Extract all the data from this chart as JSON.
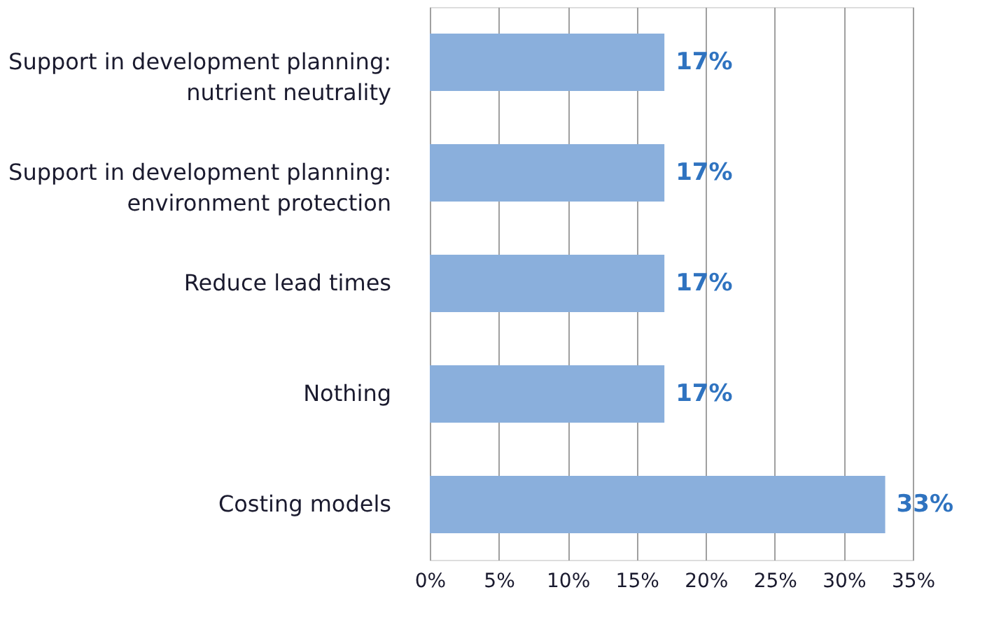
{
  "chart_data": {
    "type": "bar",
    "orientation": "horizontal",
    "categories": [
      "Support in development planning:\nnutrient neutrality",
      "Support in development planning:\nenvironment protection",
      "Reduce lead times",
      "Nothing",
      "Costing models"
    ],
    "values": [
      17,
      17,
      17,
      17,
      33
    ],
    "color": "#8aafdc",
    "xlim": [
      0,
      35
    ],
    "xticks": [
      {
        "value": 0,
        "label": "0%"
      },
      {
        "value": 5,
        "label": "5%"
      },
      {
        "value": 10,
        "label": "10%"
      },
      {
        "value": 15,
        "label": "15%"
      },
      {
        "value": 20,
        "label": "20%"
      },
      {
        "value": 25,
        "label": "25%"
      },
      {
        "value": 30,
        "label": "30%"
      },
      {
        "value": 35,
        "label": "35%"
      }
    ],
    "value_labels": [
      "17%",
      "17%",
      "17%",
      "17%",
      "33%"
    ],
    "grid": "x"
  }
}
